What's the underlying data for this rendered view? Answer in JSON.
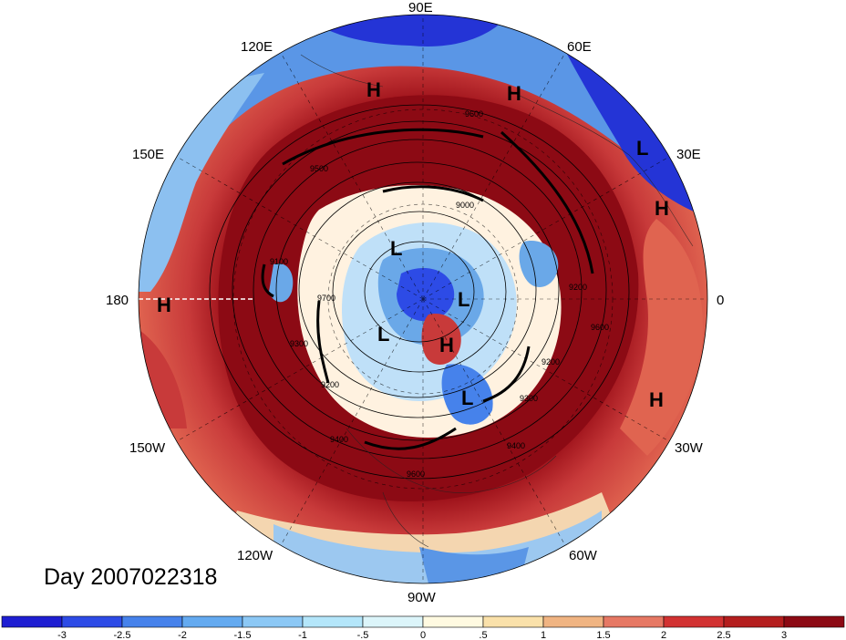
{
  "title": "Day 2007022318",
  "longitude_labels": [
    "90E",
    "60E",
    "30E",
    "0",
    "30W",
    "60W",
    "90W",
    "120W",
    "150W",
    "180",
    "150E",
    "120E"
  ],
  "contour_labels": [
    "9600",
    "9500",
    "9100",
    "9700",
    "9300",
    "9200",
    "9400",
    "9600",
    "9200",
    "9300",
    "9400",
    "9600",
    "9200",
    "9000"
  ],
  "pressure_centers": [
    {
      "type": "H",
      "lon_label": "near 105E"
    },
    {
      "type": "H",
      "lon_label": "near 65E"
    },
    {
      "type": "L",
      "lon_label": "near 35E"
    },
    {
      "type": "H",
      "lon_label": "near 20E"
    },
    {
      "type": "H",
      "lon_label": "near 180"
    },
    {
      "type": "L",
      "lon_label": "inner"
    },
    {
      "type": "L",
      "lon_label": "inner"
    },
    {
      "type": "L",
      "lon_label": "inner"
    },
    {
      "type": "H",
      "lon_label": "inner"
    },
    {
      "type": "L",
      "lon_label": "inner"
    },
    {
      "type": "H",
      "lon_label": "near 30W"
    }
  ],
  "colorbar": {
    "ticks": [
      "-3",
      "-2.5",
      "-2",
      "-1.5",
      "-1",
      "-.5",
      "0",
      ".5",
      "1",
      "1.5",
      "2",
      "2.5",
      "3"
    ],
    "colors": [
      "#1e1ed2",
      "#2d4be6",
      "#4682eb",
      "#64aaf0",
      "#8cc8f5",
      "#b4e6fa",
      "#dcf5fa",
      "#fffae1",
      "#fae1aa",
      "#f0b482",
      "#e67864",
      "#d23232",
      "#b41e1e",
      "#8c0a14"
    ]
  },
  "colors": {
    "strong_positive": "#a0141c",
    "positive": "#e05a4a",
    "neutral": "#fff8e6",
    "negative": "#6aa8e8",
    "strong_negative": "#2030d0"
  }
}
